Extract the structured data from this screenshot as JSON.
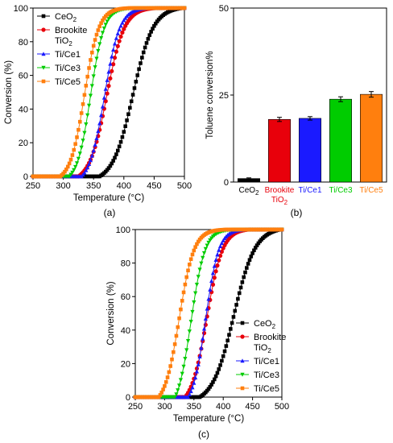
{
  "panel_labels": [
    "(a)",
    "(b)",
    "(c)"
  ],
  "colors": {
    "CeO2": "#000000",
    "Brookite": "#e8000b",
    "Ti/Ce1": "#1a1aff",
    "Ti/Ce3": "#00cc00",
    "Ti/Ce5": "#ff7f0e"
  },
  "chart_data": [
    {
      "type": "line",
      "panel": "(a)",
      "xlabel": "Temperature (°C)",
      "ylabel": "Conversion (%)",
      "xlim": [
        250,
        500
      ],
      "ylim": [
        0,
        100
      ],
      "xticks": [
        250,
        300,
        350,
        400,
        450,
        500
      ],
      "yticks": [
        0,
        20,
        40,
        60,
        80,
        100
      ],
      "grid": false,
      "legend_position": "top-left",
      "series": [
        {
          "name": "CeO2",
          "name_main": "CeO",
          "name_sub": "2",
          "color": "#000000",
          "marker": "square",
          "onset": 360,
          "t50": 415,
          "end": 497,
          "k": 0.06
        },
        {
          "name": "Brookite TiO2",
          "name_main": "Brookite",
          "name_line2": "TiO",
          "name_sub": "2",
          "color": "#e8000b",
          "marker": "circle",
          "onset": 325,
          "t50": 372,
          "end": 452,
          "k": 0.07
        },
        {
          "name": "Ti/Ce1",
          "color": "#1a1aff",
          "marker": "triangle-up",
          "onset": 330,
          "t50": 368,
          "end": 440,
          "k": 0.08
        },
        {
          "name": "Ti/Ce3",
          "color": "#00cc00",
          "marker": "triangle-down",
          "onset": 310,
          "t50": 345,
          "end": 420,
          "k": 0.09
        },
        {
          "name": "Ti/Ce5",
          "color": "#ff7f0e",
          "marker": "square",
          "onset": 295,
          "t50": 335,
          "end": 410,
          "k": 0.085
        }
      ]
    },
    {
      "type": "bar",
      "panel": "(b)",
      "ylabel": "Toluene conversion%",
      "ylim": [
        0,
        50
      ],
      "yticks": [
        0,
        25,
        50
      ],
      "categories": [
        "CeO2",
        "Brookite TiO2",
        "Ti/Ce1",
        "Ti/Ce3",
        "Ti/Ce5"
      ],
      "category_labels": [
        {
          "main": "CeO",
          "sub": "2",
          "color": "#000000"
        },
        {
          "main": "Brookite",
          "line2": "TiO",
          "sub": "2",
          "color": "#e8000b"
        },
        {
          "main": "Ti/Ce1",
          "color": "#1a1aff"
        },
        {
          "main": "Ti/Ce3",
          "color": "#00cc00"
        },
        {
          "main": "Ti/Ce5",
          "color": "#ff7f0e"
        }
      ],
      "values": [
        1.0,
        18.0,
        18.3,
        23.8,
        25.2
      ],
      "errors": [
        0.2,
        0.6,
        0.5,
        0.7,
        0.8
      ],
      "colors": [
        "#000000",
        "#e8000b",
        "#1a1aff",
        "#00cc00",
        "#ff7f0e"
      ]
    },
    {
      "type": "line",
      "panel": "(c)",
      "xlabel": "Temperature (°C)",
      "ylabel": "Conversion (%)",
      "xlim": [
        250,
        500
      ],
      "ylim": [
        0,
        100
      ],
      "xticks": [
        250,
        300,
        350,
        400,
        450,
        500
      ],
      "yticks": [
        0,
        20,
        40,
        60,
        80,
        100
      ],
      "grid": false,
      "legend_position": "right",
      "series": [
        {
          "name": "CeO2",
          "name_main": "CeO",
          "name_sub": "2",
          "color": "#000000",
          "marker": "square",
          "onset": 360,
          "t50": 418,
          "end": 497,
          "k": 0.055
        },
        {
          "name": "Brookite TiO2",
          "name_main": "Brookite",
          "name_line2": "TiO",
          "name_sub": "2",
          "color": "#e8000b",
          "marker": "circle",
          "onset": 335,
          "t50": 372,
          "end": 443,
          "k": 0.075
        },
        {
          "name": "Ti/Ce1",
          "color": "#1a1aff",
          "marker": "triangle-up",
          "onset": 340,
          "t50": 370,
          "end": 438,
          "k": 0.09
        },
        {
          "name": "Ti/Ce3",
          "color": "#00cc00",
          "marker": "triangle-down",
          "onset": 318,
          "t50": 345,
          "end": 420,
          "k": 0.085
        },
        {
          "name": "Ti/Ce5",
          "color": "#ff7f0e",
          "marker": "square",
          "onset": 290,
          "t50": 325,
          "end": 405,
          "k": 0.08
        }
      ]
    }
  ]
}
